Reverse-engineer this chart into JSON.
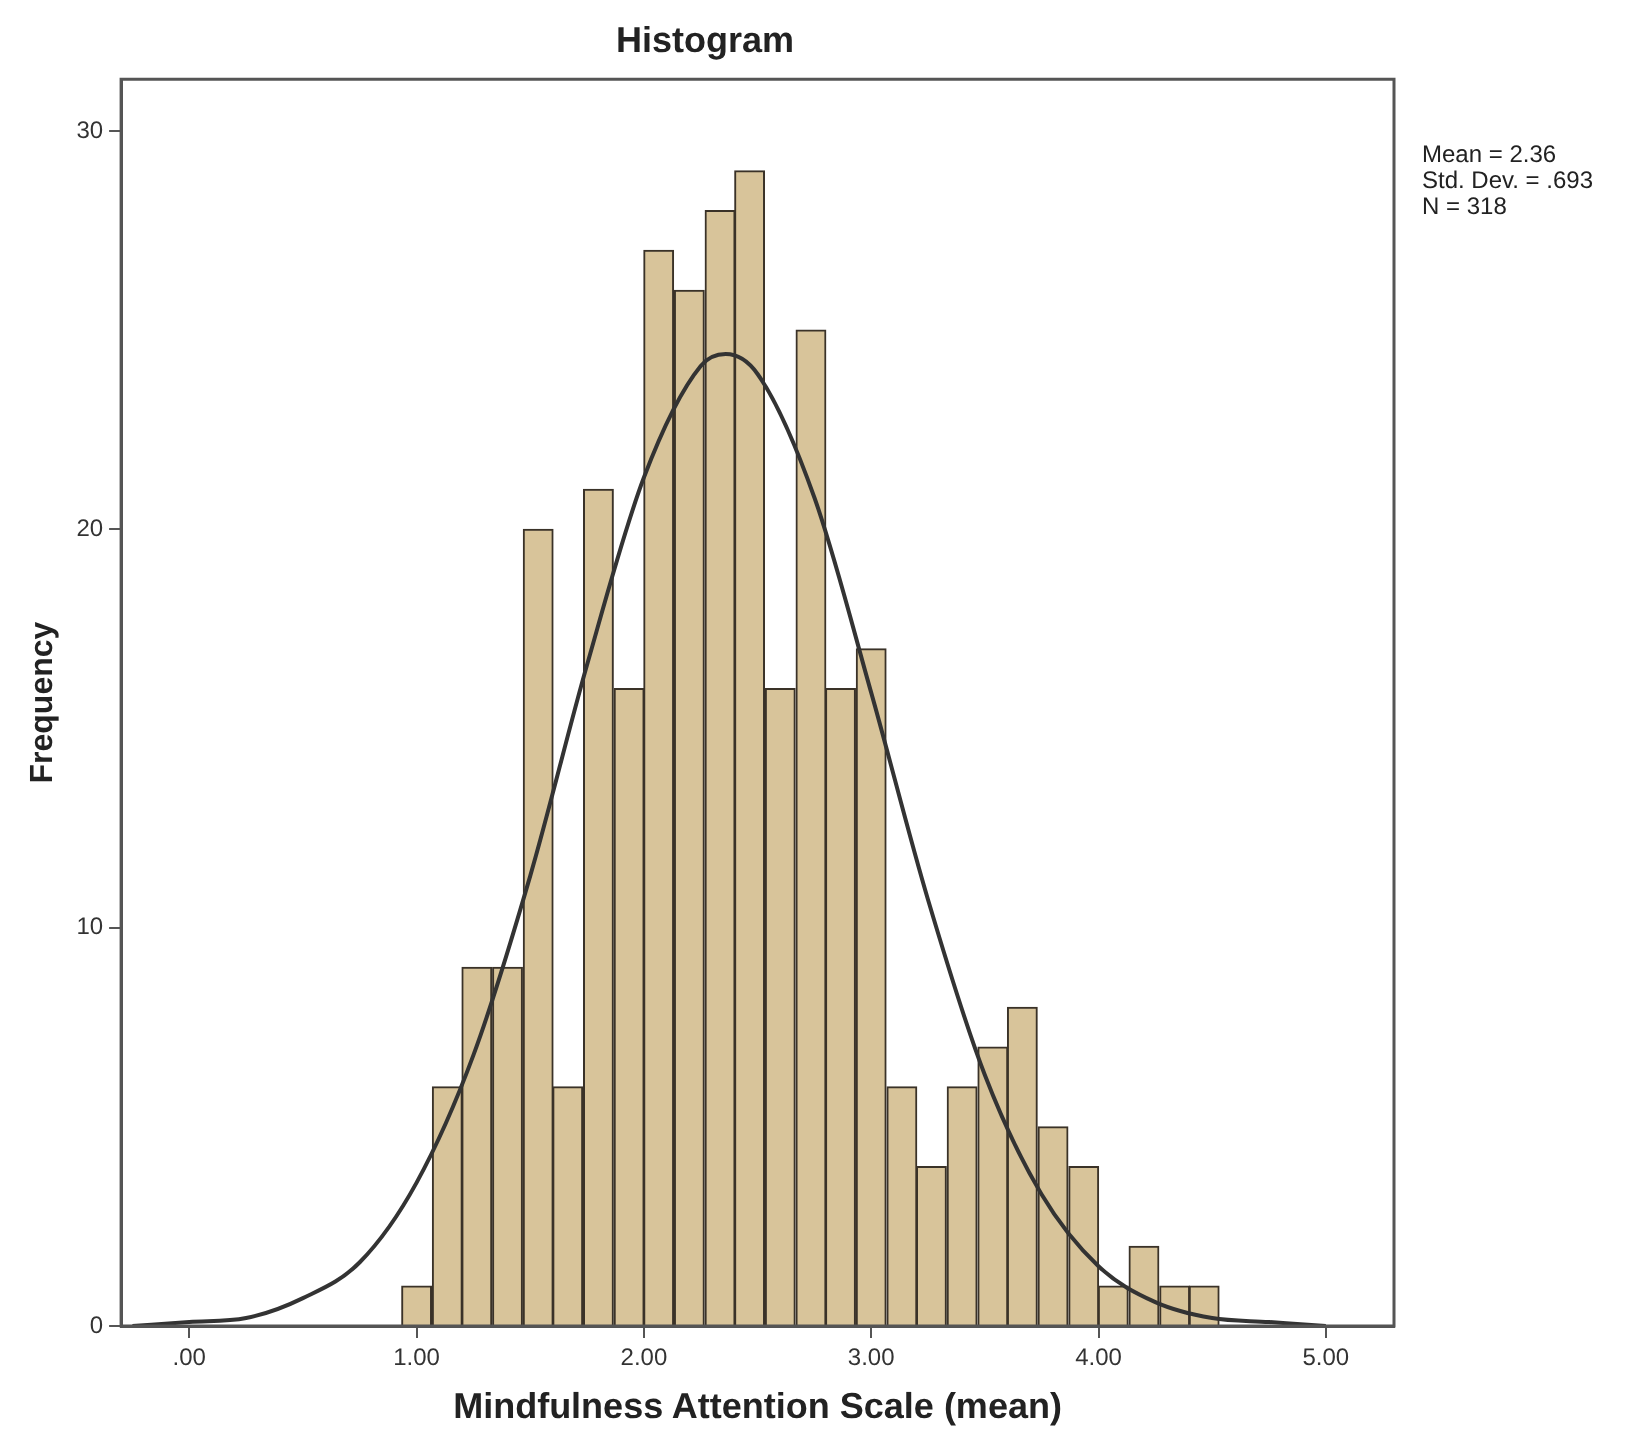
{
  "chart_data": {
    "type": "histogram",
    "title": "Histogram",
    "xlabel": "Mindfulness Attention Scale (mean)",
    "ylabel": "Frequency",
    "bins": [
      0.93,
      1.07,
      1.2,
      1.33,
      1.47,
      1.6,
      1.73,
      1.87,
      2.0,
      2.13,
      2.27,
      2.4,
      2.53,
      2.67,
      2.8,
      2.93,
      3.07,
      3.2,
      3.33,
      3.47,
      3.6,
      3.73,
      3.87,
      4.0,
      4.13,
      4.27,
      4.4,
      4.53
    ],
    "values": [
      1,
      6,
      9,
      9,
      20,
      6,
      21,
      16,
      27,
      26,
      28,
      29,
      16,
      25,
      16,
      17,
      6,
      4,
      6,
      7,
      8,
      5,
      4,
      1,
      2,
      1,
      1
    ],
    "color": "#d8c49a",
    "series": [
      {
        "type": "line",
        "color": "#333333",
        "x": [
          -0.25,
          0,
          0.25,
          0.5,
          0.75,
          1,
          1.25,
          1.5,
          1.75,
          2,
          2.25,
          2.36,
          2.5,
          2.75,
          3,
          3.25,
          3.5,
          3.75,
          4,
          4.25,
          4.5,
          4.75,
          5
        ],
        "values": [
          0,
          0.1,
          0.2,
          0.7,
          1.6,
          3.6,
          6.8,
          11.3,
          16.6,
          21.3,
          24.1,
          24.4,
          23.9,
          20.8,
          15.9,
          10.7,
          6.3,
          3.3,
          1.5,
          0.6,
          0.2,
          0.1,
          0
        ]
      }
    ],
    "xlim": [
      -0.3,
      5.3
    ],
    "ylim": [
      0,
      31.3
    ],
    "xticks": [
      {
        "value": 0,
        "label": ".00"
      },
      {
        "value": 1,
        "label": "1.00"
      },
      {
        "value": 2,
        "label": "2.00"
      },
      {
        "value": 3,
        "label": "3.00"
      },
      {
        "value": 4,
        "label": "4.00"
      },
      {
        "value": 5,
        "label": "5.00"
      }
    ],
    "yticks": [
      0,
      10,
      20,
      30
    ],
    "annotations": [
      "Mean = 2.36",
      "Std. Dev. = .693",
      "N = 318"
    ],
    "grid": false,
    "legend": false
  }
}
